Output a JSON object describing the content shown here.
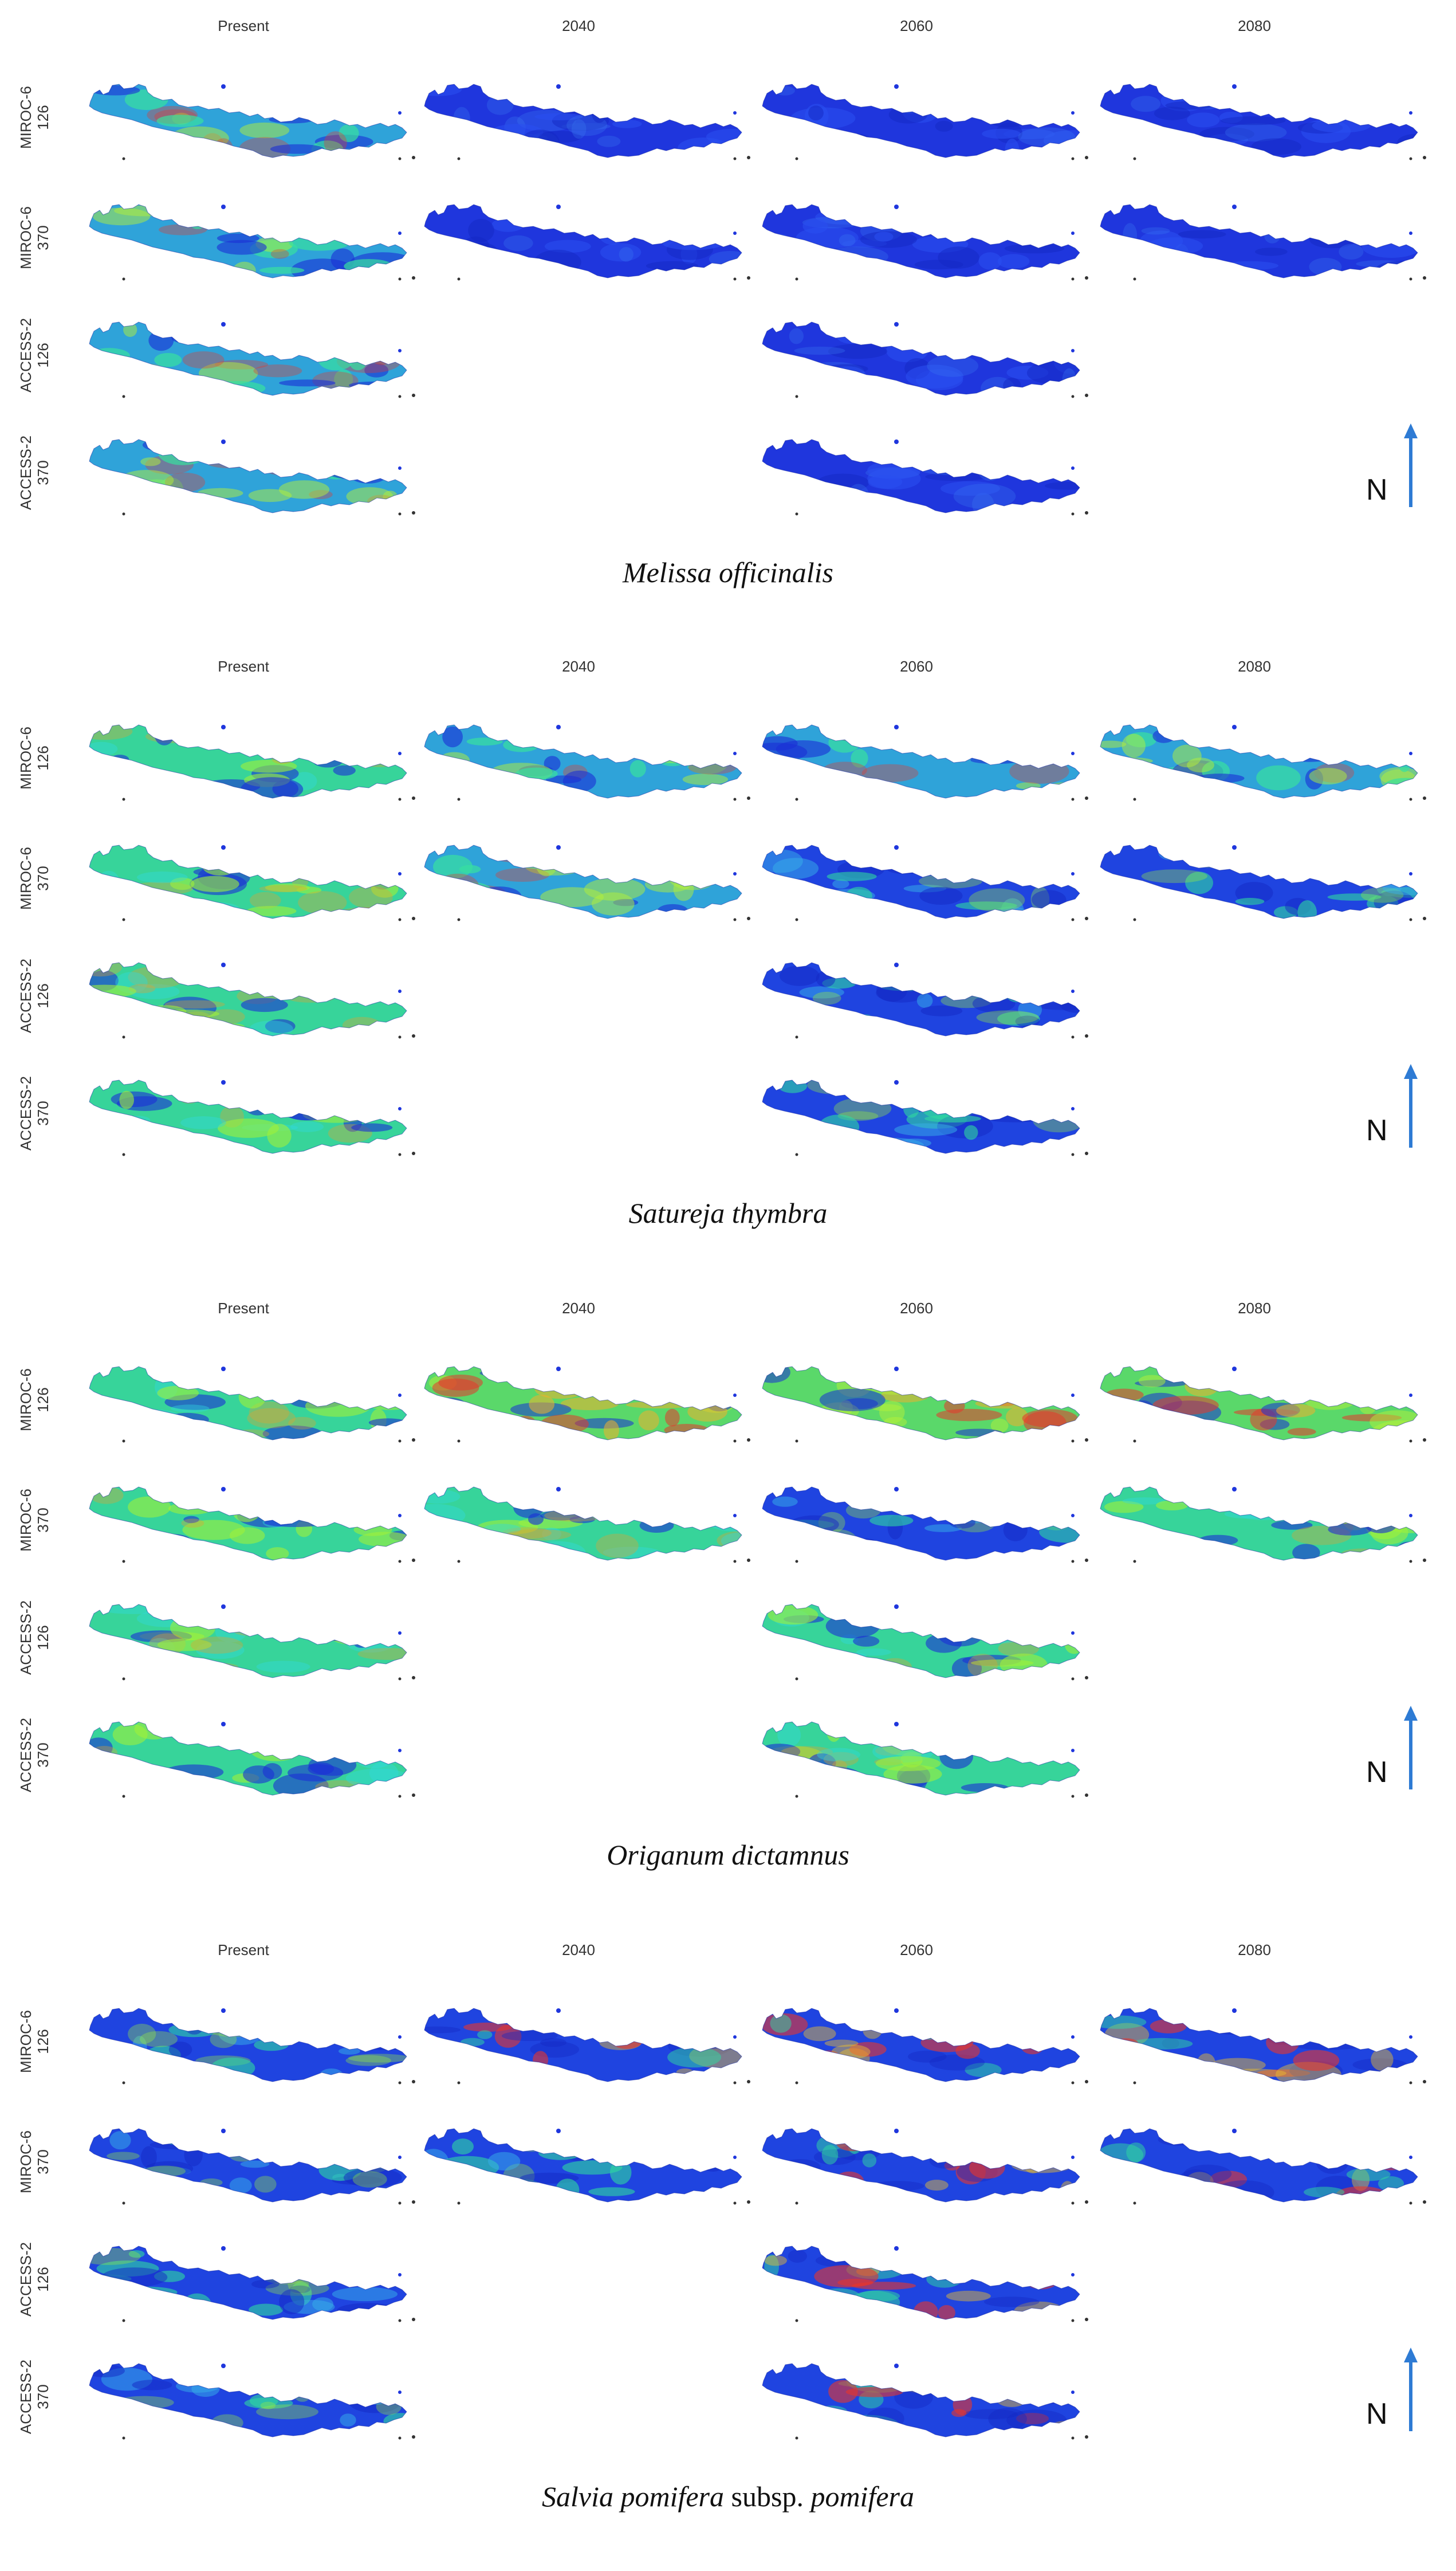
{
  "column_headers": [
    "Present",
    "2040",
    "2060",
    "2080"
  ],
  "row_labels": [
    {
      "model": "MIROC-6",
      "scenario": "126"
    },
    {
      "model": "MIROC-6",
      "scenario": "370"
    },
    {
      "model": "ACCESS-2",
      "scenario": "126"
    },
    {
      "model": "ACCESS-2",
      "scenario": "370"
    }
  ],
  "north_label": "N",
  "colors": {
    "low": "#1a2fd6",
    "mid": "#2fd9a0",
    "high": "#9ef03a",
    "peak": "#e8362b",
    "arrow": "#2e7bd4"
  },
  "panels": [
    {
      "species_italic": "Melissa officinalis",
      "species_roman": "",
      "species_italic2": "",
      "row_labels": [
        {
          "model": "MIROC-6",
          "scenario": "126"
        },
        {
          "model": "MIROC-6",
          "scenario": "370"
        },
        {
          "model": "ACCESS-2",
          "scenario": "126"
        },
        {
          "model": "ACCESS-2",
          "scenario": "370"
        }
      ],
      "maps": [
        [
          "mixed",
          "blue",
          "blue",
          "blue"
        ],
        [
          "mixed",
          "blue",
          "blue",
          "blue"
        ],
        [
          "mixed",
          "",
          "blue",
          ""
        ],
        [
          "mixed",
          "",
          "blue",
          ""
        ]
      ]
    },
    {
      "species_italic": "Satureja thymbra",
      "species_roman": "",
      "species_italic2": "",
      "row_labels": [
        {
          "model": "MIROC-6",
          "scenario": "126"
        },
        {
          "model": "MIROC-6",
          "scenario": "370"
        },
        {
          "model": "ACCESS-2",
          "scenario": "126"
        },
        {
          "model": "ACCESS-2",
          "scenario": "370"
        }
      ],
      "maps": [
        [
          "green",
          "mixed",
          "mixed",
          "mixed"
        ],
        [
          "green",
          "mixed",
          "bluegreen",
          "bluegreen"
        ],
        [
          "green",
          "",
          "bluegreen",
          ""
        ],
        [
          "green",
          "",
          "bluegreen",
          ""
        ]
      ]
    },
    {
      "species_italic": "Origanum dictamnus",
      "species_roman": "",
      "species_italic2": "",
      "row_labels": [
        {
          "model": "MIROC-6",
          "scenario": "126"
        },
        {
          "model": "MIROC-6",
          "scenario": "370"
        },
        {
          "model": "ACCESS-2",
          "scenario": "126"
        },
        {
          "model": "ACCESS-2",
          "scenario": "370"
        }
      ],
      "maps": [
        [
          "green",
          "warm",
          "warm",
          "warm"
        ],
        [
          "green",
          "green",
          "bluegreen",
          "green"
        ],
        [
          "green",
          "",
          "green",
          ""
        ],
        [
          "green",
          "",
          "green",
          ""
        ]
      ]
    },
    {
      "species_italic": "Salvia pomifera",
      "species_roman": " subsp. ",
      "species_italic2": "pomifera",
      "row_labels": [
        {
          "model": "MIROC-6",
          "scenario": "126"
        },
        {
          "model": "MIROC-6",
          "scenario": "370"
        },
        {
          "model": "ACCESS-2",
          "scenario": "126"
        },
        {
          "model": "ACCESS-2",
          "scenario": "370"
        }
      ],
      "maps": [
        [
          "bluegreen",
          "hot",
          "hot",
          "hot"
        ],
        [
          "bluegreen",
          "bluegreen",
          "hot",
          "hot"
        ],
        [
          "bluegreen",
          "",
          "hot",
          ""
        ],
        [
          "bluegreen",
          "",
          "hot",
          ""
        ]
      ]
    }
  ]
}
